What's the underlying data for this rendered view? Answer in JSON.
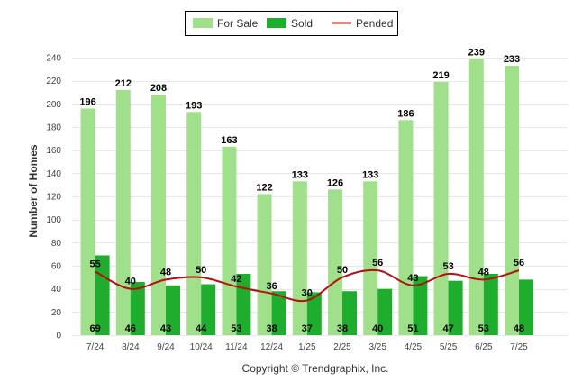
{
  "chart_data": {
    "type": "bar",
    "categories": [
      "7/24",
      "8/24",
      "9/24",
      "10/24",
      "11/24",
      "12/24",
      "1/25",
      "2/25",
      "3/25",
      "4/25",
      "5/25",
      "6/25",
      "7/25"
    ],
    "series": [
      {
        "name": "For Sale",
        "kind": "bar",
        "color": "#a1e08a",
        "values": [
          196,
          212,
          208,
          193,
          163,
          122,
          133,
          126,
          133,
          186,
          219,
          239,
          233
        ]
      },
      {
        "name": "Sold",
        "kind": "bar",
        "color": "#1fad2d",
        "values": [
          69,
          46,
          43,
          44,
          53,
          38,
          37,
          38,
          40,
          51,
          47,
          53,
          48
        ]
      },
      {
        "name": "Pended",
        "kind": "line",
        "color": "#b50f10",
        "values": [
          55,
          40,
          48,
          50,
          42,
          36,
          30,
          50,
          56,
          43,
          53,
          48,
          56
        ]
      }
    ],
    "ylabel": "Number of Homes",
    "ylim": [
      0,
      240
    ],
    "yticks": [
      0,
      20,
      40,
      60,
      80,
      100,
      120,
      140,
      160,
      180,
      200,
      220,
      240
    ],
    "grid": true,
    "legend_position": "top-center"
  },
  "footer": {
    "copyright": "Copyright © Trendgraphix, Inc."
  }
}
